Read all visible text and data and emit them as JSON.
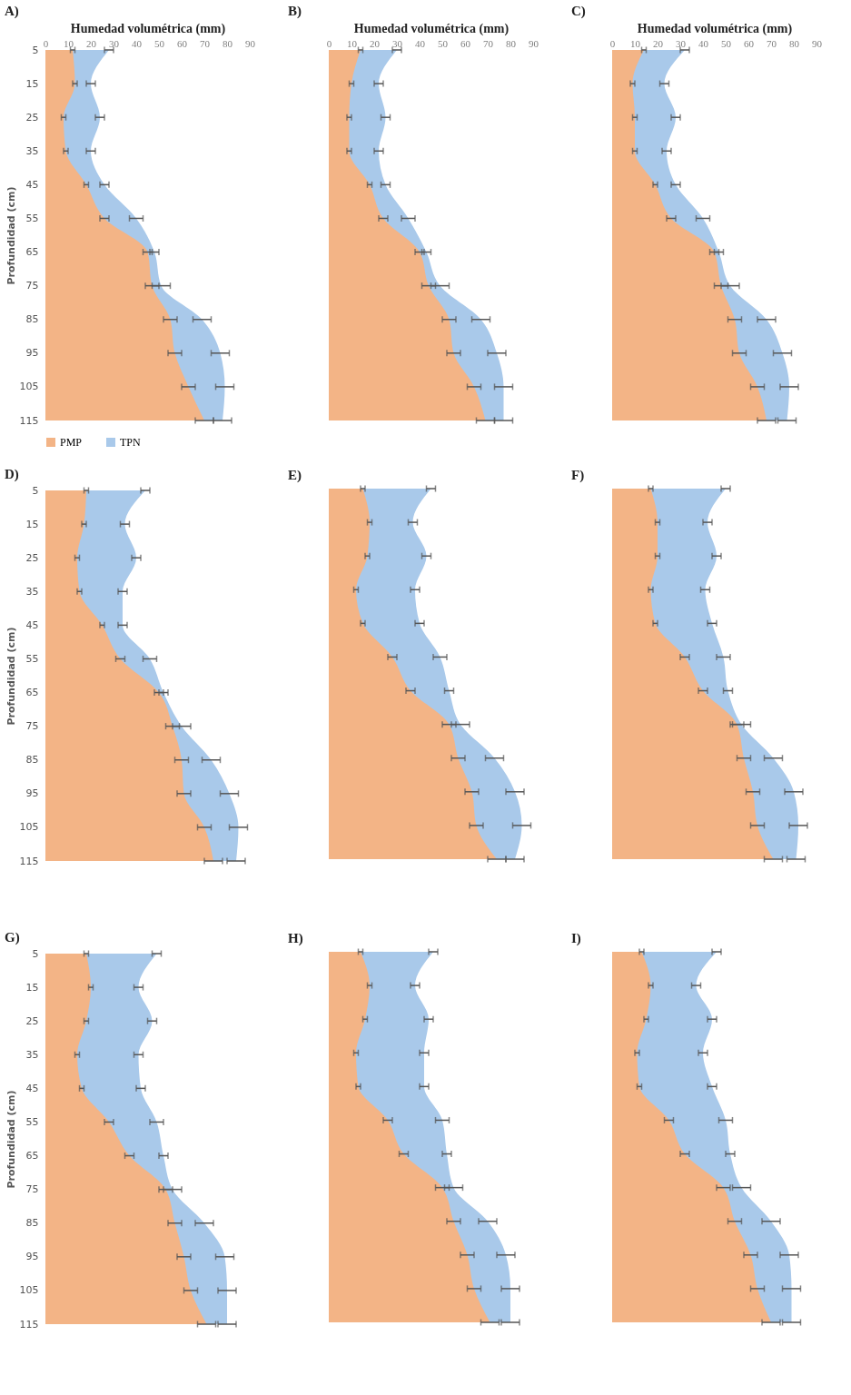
{
  "chart_data": [
    {
      "type": "area",
      "orientation": "horizontal",
      "title": "A)",
      "xlabel": "Humedad volumétrica (mm)",
      "ylabel": "Profundidad (cm)",
      "categories": [
        "5",
        "15",
        "25",
        "35",
        "45",
        "55",
        "65",
        "75",
        "85",
        "95",
        "105",
        "115"
      ],
      "xlim": [
        0,
        90
      ],
      "xticks": [
        0,
        10,
        20,
        30,
        40,
        50,
        60,
        70,
        80,
        90
      ],
      "legend": "bottom",
      "series": [
        {
          "name": "PMP",
          "color": "#f3b486",
          "values": [
            12,
            13,
            8,
            9,
            18,
            26,
            45,
            47,
            55,
            57,
            63,
            70
          ],
          "errors": [
            1,
            1,
            1,
            1,
            1,
            2,
            2,
            3,
            3,
            3,
            3,
            4
          ]
        },
        {
          "name": "TPN",
          "color": "#a9c9ea",
          "values": [
            28,
            20,
            24,
            20,
            26,
            40,
            48,
            51,
            69,
            77,
            79,
            78
          ],
          "errors": [
            2,
            2,
            2,
            2,
            2,
            3,
            2,
            4,
            4,
            4,
            4,
            4
          ]
        }
      ]
    },
    {
      "type": "area",
      "orientation": "horizontal",
      "title": "B)",
      "xlabel": "Humedad volumétrica (mm)",
      "categories": [
        "5",
        "15",
        "25",
        "35",
        "45",
        "55",
        "65",
        "75",
        "85",
        "95",
        "105",
        "115"
      ],
      "xlim": [
        0,
        90
      ],
      "xticks": [
        0,
        10,
        20,
        30,
        40,
        50,
        60,
        70,
        80,
        90
      ],
      "tick_labels": "x",
      "series": [
        {
          "color": "#f3b486",
          "values": [
            14,
            10,
            9,
            9,
            18,
            24,
            40,
            44,
            53,
            55,
            64,
            69
          ],
          "errors": [
            1,
            1,
            1,
            1,
            1,
            2,
            2,
            3,
            3,
            3,
            3,
            4
          ]
        },
        {
          "color": "#a9c9ea",
          "values": [
            30,
            22,
            25,
            22,
            25,
            35,
            43,
            49,
            67,
            74,
            77,
            77
          ],
          "errors": [
            2,
            2,
            2,
            2,
            2,
            3,
            2,
            4,
            4,
            4,
            4,
            4
          ]
        }
      ]
    },
    {
      "type": "area",
      "orientation": "horizontal",
      "title": "C)",
      "xlabel": "Humedad volumétrica (mm)",
      "categories": [
        "5",
        "15",
        "25",
        "35",
        "45",
        "55",
        "65",
        "75",
        "85",
        "95",
        "105",
        "115"
      ],
      "xlim": [
        0,
        90
      ],
      "xticks": [
        0,
        10,
        20,
        30,
        40,
        50,
        60,
        70,
        80,
        90
      ],
      "tick_labels": "x",
      "series": [
        {
          "color": "#f3b486",
          "values": [
            14,
            9,
            10,
            10,
            19,
            26,
            45,
            48,
            54,
            56,
            64,
            68
          ],
          "errors": [
            1,
            1,
            1,
            1,
            1,
            2,
            2,
            3,
            3,
            3,
            3,
            4
          ]
        },
        {
          "color": "#a9c9ea",
          "values": [
            32,
            23,
            28,
            24,
            28,
            40,
            47,
            52,
            68,
            75,
            78,
            77
          ],
          "errors": [
            2,
            2,
            2,
            2,
            2,
            3,
            2,
            4,
            4,
            4,
            4,
            4
          ]
        }
      ]
    },
    {
      "type": "area",
      "orientation": "horizontal",
      "title": "D)",
      "ylabel": "Profundidad (cm)",
      "categories": [
        "5",
        "15",
        "25",
        "35",
        "45",
        "55",
        "65",
        "75",
        "85",
        "95",
        "105",
        "115"
      ],
      "xlim": [
        0,
        90
      ],
      "tick_labels": "y",
      "series": [
        {
          "color": "#f3b486",
          "values": [
            18,
            17,
            14,
            15,
            25,
            33,
            50,
            56,
            60,
            61,
            70,
            74
          ],
          "errors": [
            1,
            1,
            1,
            1,
            1,
            2,
            2,
            3,
            3,
            3,
            3,
            4
          ]
        },
        {
          "color": "#a9c9ea",
          "values": [
            44,
            35,
            40,
            34,
            34,
            46,
            52,
            60,
            73,
            81,
            85,
            84
          ],
          "errors": [
            2,
            2,
            2,
            2,
            2,
            3,
            2,
            4,
            4,
            4,
            4,
            4
          ]
        }
      ]
    },
    {
      "type": "area",
      "orientation": "horizontal",
      "title": "E)",
      "categories": [
        "5",
        "15",
        "25",
        "35",
        "45",
        "55",
        "65",
        "75",
        "85",
        "95",
        "105",
        "115"
      ],
      "xlim": [
        0,
        90
      ],
      "tick_labels": false,
      "series": [
        {
          "color": "#f3b486",
          "values": [
            15,
            18,
            17,
            12,
            15,
            28,
            36,
            53,
            57,
            63,
            65,
            74
          ],
          "errors": [
            1,
            1,
            1,
            1,
            1,
            2,
            2,
            3,
            3,
            3,
            3,
            4
          ]
        },
        {
          "color": "#a9c9ea",
          "values": [
            45,
            37,
            43,
            38,
            40,
            49,
            53,
            58,
            73,
            82,
            85,
            82
          ],
          "errors": [
            2,
            2,
            2,
            2,
            2,
            3,
            2,
            4,
            4,
            4,
            4,
            4
          ]
        }
      ]
    },
    {
      "type": "area",
      "orientation": "horizontal",
      "title": "F)",
      "categories": [
        "5",
        "15",
        "25",
        "35",
        "45",
        "55",
        "65",
        "75",
        "85",
        "95",
        "105",
        "115"
      ],
      "xlim": [
        0,
        90
      ],
      "tick_labels": false,
      "series": [
        {
          "color": "#f3b486",
          "values": [
            17,
            20,
            20,
            17,
            19,
            32,
            40,
            55,
            58,
            62,
            64,
            71
          ],
          "errors": [
            1,
            1,
            1,
            1,
            1,
            2,
            2,
            3,
            3,
            3,
            3,
            4
          ]
        },
        {
          "color": "#a9c9ea",
          "values": [
            50,
            42,
            46,
            41,
            44,
            49,
            51,
            57,
            71,
            80,
            82,
            81
          ],
          "errors": [
            2,
            2,
            2,
            2,
            2,
            3,
            2,
            4,
            4,
            4,
            4,
            4
          ]
        }
      ]
    },
    {
      "type": "area",
      "orientation": "horizontal",
      "title": "G)",
      "ylabel": "Profundidad (cm)",
      "categories": [
        "5",
        "15",
        "25",
        "35",
        "45",
        "55",
        "65",
        "75",
        "85",
        "95",
        "105",
        "115"
      ],
      "xlim": [
        0,
        90
      ],
      "tick_labels": "y",
      "series": [
        {
          "color": "#f3b486",
          "values": [
            18,
            20,
            18,
            14,
            16,
            28,
            37,
            53,
            57,
            61,
            64,
            71
          ],
          "errors": [
            1,
            1,
            1,
            1,
            1,
            2,
            2,
            3,
            3,
            3,
            3,
            4
          ]
        },
        {
          "color": "#a9c9ea",
          "values": [
            49,
            41,
            47,
            41,
            42,
            49,
            52,
            56,
            70,
            79,
            80,
            80
          ],
          "errors": [
            2,
            2,
            2,
            2,
            2,
            3,
            2,
            4,
            4,
            4,
            4,
            4
          ]
        }
      ]
    },
    {
      "type": "area",
      "orientation": "horizontal",
      "title": "H)",
      "categories": [
        "5",
        "15",
        "25",
        "35",
        "45",
        "55",
        "65",
        "75",
        "85",
        "95",
        "105",
        "115"
      ],
      "xlim": [
        0,
        90
      ],
      "tick_labels": false,
      "series": [
        {
          "color": "#f3b486",
          "values": [
            14,
            18,
            16,
            12,
            13,
            26,
            33,
            50,
            55,
            61,
            64,
            71
          ],
          "errors": [
            1,
            1,
            1,
            1,
            1,
            2,
            2,
            3,
            3,
            3,
            3,
            4
          ]
        },
        {
          "color": "#a9c9ea",
          "values": [
            46,
            38,
            44,
            42,
            42,
            50,
            52,
            55,
            70,
            78,
            80,
            80
          ],
          "errors": [
            2,
            2,
            2,
            2,
            2,
            3,
            2,
            4,
            4,
            4,
            4,
            4
          ]
        }
      ]
    },
    {
      "type": "area",
      "orientation": "horizontal",
      "title": "I)",
      "categories": [
        "5",
        "15",
        "25",
        "35",
        "45",
        "55",
        "65",
        "75",
        "85",
        "95",
        "105",
        "115"
      ],
      "xlim": [
        0,
        90
      ],
      "tick_labels": false,
      "series": [
        {
          "color": "#f3b486",
          "values": [
            13,
            17,
            15,
            11,
            12,
            25,
            32,
            49,
            54,
            61,
            64,
            70
          ],
          "errors": [
            1,
            1,
            1,
            1,
            1,
            2,
            2,
            3,
            3,
            3,
            3,
            4
          ]
        },
        {
          "color": "#a9c9ea",
          "values": [
            46,
            37,
            44,
            40,
            44,
            50,
            52,
            57,
            70,
            78,
            79,
            79
          ],
          "errors": [
            2,
            2,
            2,
            2,
            2,
            3,
            2,
            4,
            4,
            4,
            4,
            4
          ]
        }
      ]
    }
  ]
}
